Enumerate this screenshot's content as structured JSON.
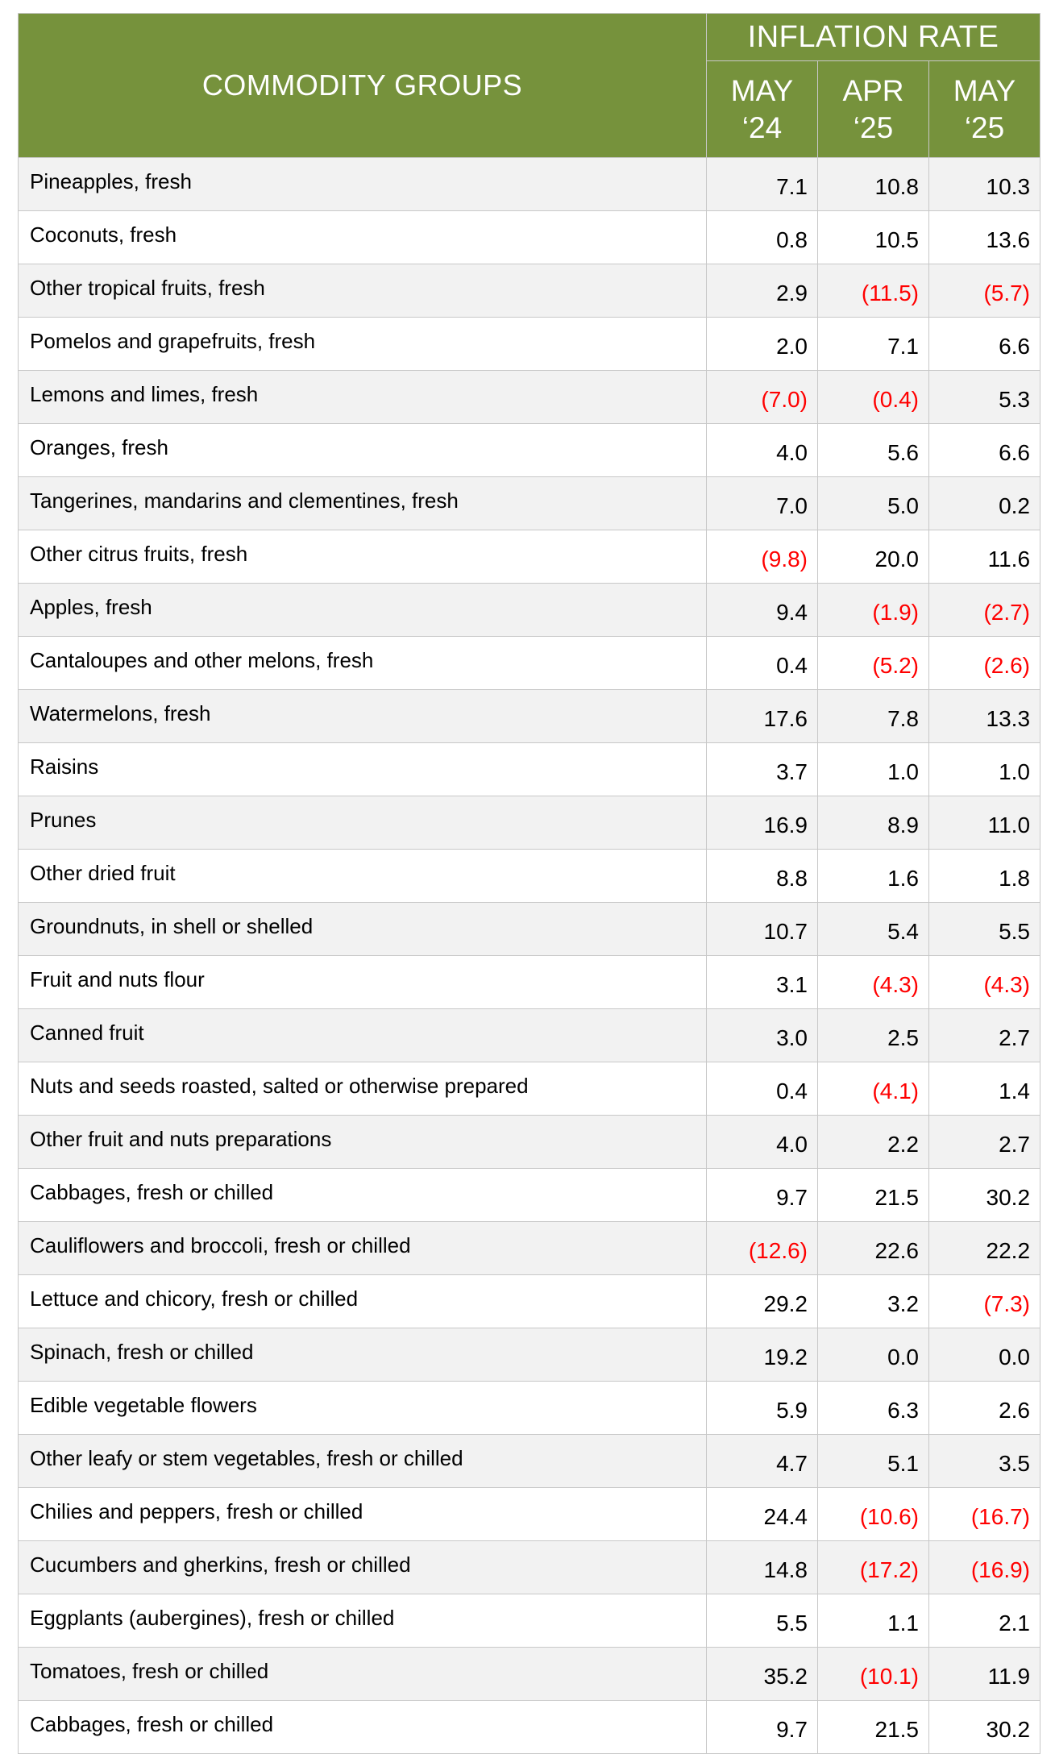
{
  "header": {
    "groups_label": "COMMODITY GROUPS",
    "rate_label": "INFLATION RATE",
    "months": [
      {
        "line1": "MAY",
        "line2": "‘24"
      },
      {
        "line1": "APR",
        "line2": "‘25"
      },
      {
        "line1": "MAY",
        "line2": "‘25"
      }
    ]
  },
  "colors": {
    "header_bg": "#76923c",
    "negative": "#ff0000",
    "stripe": "#f2f2f2"
  },
  "rows": [
    {
      "name": "Pineapples, fresh",
      "values": [
        "7.1",
        "10.8",
        "10.3"
      ]
    },
    {
      "name": "Coconuts, fresh",
      "values": [
        "0.8",
        "10.5",
        "13.6"
      ]
    },
    {
      "name": "Other tropical fruits, fresh",
      "values": [
        "2.9",
        "(11.5)",
        "(5.7)"
      ]
    },
    {
      "name": "Pomelos and grapefruits, fresh",
      "values": [
        "2.0",
        "7.1",
        "6.6"
      ]
    },
    {
      "name": "Lemons and limes, fresh",
      "values": [
        "(7.0)",
        "(0.4)",
        "5.3"
      ]
    },
    {
      "name": "Oranges, fresh",
      "values": [
        "4.0",
        "5.6",
        "6.6"
      ]
    },
    {
      "name": "Tangerines, mandarins and clementines, fresh",
      "values": [
        "7.0",
        "5.0",
        "0.2"
      ]
    },
    {
      "name": "Other citrus fruits, fresh",
      "values": [
        "(9.8)",
        "20.0",
        "11.6"
      ]
    },
    {
      "name": "Apples, fresh",
      "values": [
        "9.4",
        "(1.9)",
        "(2.7)"
      ]
    },
    {
      "name": "Cantaloupes and other melons, fresh",
      "values": [
        "0.4",
        "(5.2)",
        "(2.6)"
      ]
    },
    {
      "name": "Watermelons, fresh",
      "values": [
        "17.6",
        "7.8",
        "13.3"
      ]
    },
    {
      "name": "Raisins",
      "values": [
        "3.7",
        "1.0",
        "1.0"
      ]
    },
    {
      "name": "Prunes",
      "values": [
        "16.9",
        "8.9",
        "11.0"
      ]
    },
    {
      "name": "Other dried fruit",
      "values": [
        "8.8",
        "1.6",
        "1.8"
      ]
    },
    {
      "name": "Groundnuts, in shell or shelled",
      "values": [
        "10.7",
        "5.4",
        "5.5"
      ]
    },
    {
      "name": "Fruit and nuts flour",
      "values": [
        "3.1",
        "(4.3)",
        "(4.3)"
      ]
    },
    {
      "name": "Canned fruit",
      "values": [
        "3.0",
        "2.5",
        "2.7"
      ]
    },
    {
      "name": "Nuts and seeds roasted, salted or otherwise prepared",
      "values": [
        "0.4",
        "(4.1)",
        "1.4"
      ]
    },
    {
      "name": "Other fruit and nuts preparations",
      "values": [
        "4.0",
        "2.2",
        "2.7"
      ]
    },
    {
      "name": "Cabbages, fresh or chilled",
      "values": [
        "9.7",
        "21.5",
        "30.2"
      ]
    },
    {
      "name": "Cauliflowers and broccoli, fresh or chilled",
      "values": [
        "(12.6)",
        "22.6",
        "22.2"
      ]
    },
    {
      "name": "Lettuce and chicory, fresh or chilled",
      "values": [
        "29.2",
        "3.2",
        "(7.3)"
      ]
    },
    {
      "name": "Spinach, fresh or chilled",
      "values": [
        "19.2",
        "0.0",
        "0.0"
      ]
    },
    {
      "name": "Edible vegetable flowers",
      "values": [
        "5.9",
        "6.3",
        "2.6"
      ]
    },
    {
      "name": "Other leafy or stem vegetables, fresh or chilled",
      "values": [
        "4.7",
        "5.1",
        "3.5"
      ]
    },
    {
      "name": "Chilies and peppers, fresh or chilled",
      "values": [
        "24.4",
        "(10.6)",
        "(16.7)"
      ]
    },
    {
      "name": "Cucumbers and gherkins, fresh or chilled",
      "values": [
        "14.8",
        "(17.2)",
        "(16.9)"
      ]
    },
    {
      "name": "Eggplants (aubergines), fresh or chilled",
      "values": [
        "5.5",
        "1.1",
        "2.1"
      ]
    },
    {
      "name": "Tomatoes, fresh or chilled",
      "values": [
        "35.2",
        "(10.1)",
        "11.9"
      ]
    },
    {
      "name": "Cabbages, fresh or chilled",
      "values": [
        "9.7",
        "21.5",
        "30.2"
      ]
    }
  ]
}
